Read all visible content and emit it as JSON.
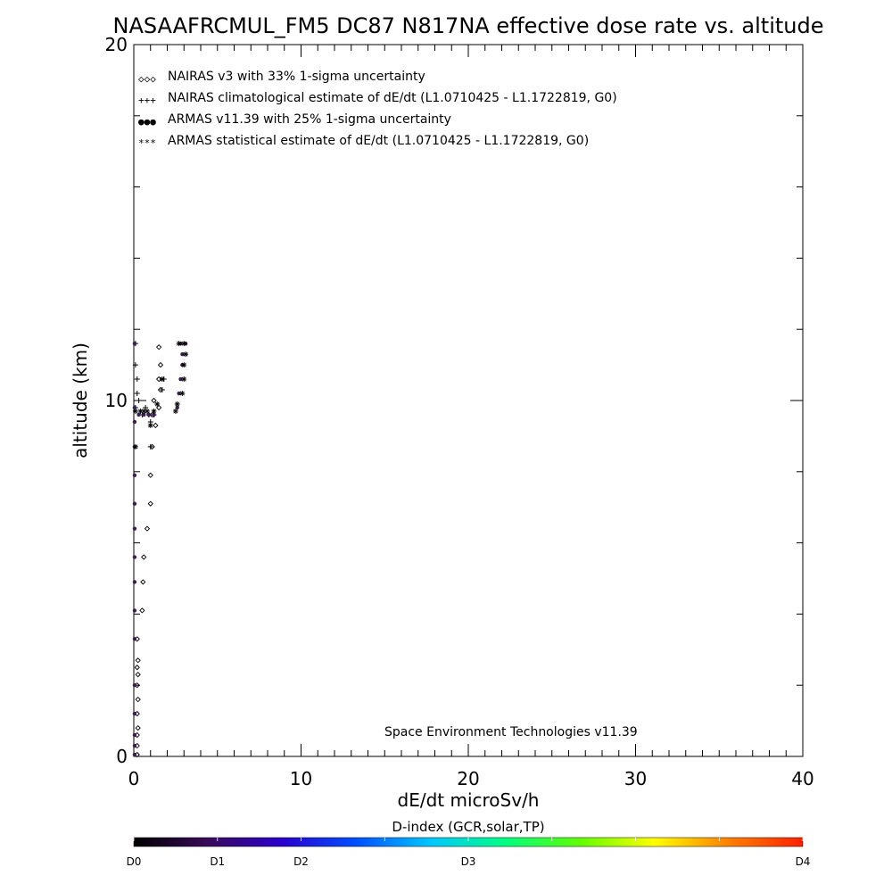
{
  "chart_data": {
    "type": "scatter",
    "title": "NASAAFRCMUL_FM5 DC87 N817NA effective dose rate vs. altitude",
    "xlabel": "dE/dt microSv/h",
    "ylabel": "altitude (km)",
    "xlim": [
      0,
      40
    ],
    "ylim": [
      0,
      20
    ],
    "x_ticks": [
      "0",
      "10",
      "20",
      "30",
      "40"
    ],
    "y_ticks": [
      "0",
      "10",
      "20"
    ],
    "legend_position": "top-left",
    "legend": [
      {
        "symbol": "◇◇◇",
        "label": "NAIRAS v3 with 33% 1-sigma uncertainty",
        "color": "#000000"
      },
      {
        "symbol": "+++",
        "label": "NAIRAS climatological estimate of dE/dt (L1.0710425 - L1.1722819, G0)",
        "color": "#000000"
      },
      {
        "symbol": "●●●",
        "label": "ARMAS v11.39 with 25% 1-sigma uncertainty",
        "color": "#1f3fcf"
      },
      {
        "symbol": "***",
        "label": "ARMAS statistical estimate of dE/dt (L1.0710425 - L1.1722819, G0)",
        "color": "#000000"
      }
    ],
    "series": [
      {
        "name": "NAIRAS v3 with 33% 1-sigma uncertainty",
        "marker": "diamond",
        "points": [
          [
            0.2,
            0.05
          ],
          [
            0.2,
            0.3
          ],
          [
            0.2,
            0.6
          ],
          [
            0.25,
            0.8
          ],
          [
            0.2,
            1.2
          ],
          [
            0.25,
            1.6
          ],
          [
            0.2,
            2.0
          ],
          [
            0.25,
            2.3
          ],
          [
            0.2,
            2.5
          ],
          [
            0.25,
            2.7
          ],
          [
            0.2,
            3.3
          ],
          [
            0.5,
            4.1
          ],
          [
            0.55,
            4.9
          ],
          [
            0.6,
            5.6
          ],
          [
            0.8,
            6.4
          ],
          [
            1.0,
            7.1
          ],
          [
            1.0,
            7.9
          ],
          [
            1.1,
            8.7
          ],
          [
            1.3,
            9.3
          ],
          [
            1.1,
            9.6
          ],
          [
            1.5,
            9.8
          ],
          [
            1.2,
            10.0
          ],
          [
            1.6,
            10.3
          ],
          [
            1.5,
            10.6
          ],
          [
            1.6,
            11.0
          ],
          [
            1.5,
            11.5
          ]
        ]
      },
      {
        "name": "NAIRAS climatological estimate of dE/dt (L1.0710425 - L1.1722819, G0)",
        "marker": "plus",
        "points": [
          [
            0.1,
            9.8
          ],
          [
            0.2,
            10.2
          ],
          [
            0.2,
            10.6
          ],
          [
            0.3,
            10.0
          ],
          [
            0.1,
            11.0
          ],
          [
            0.1,
            11.6
          ],
          [
            0.5,
            9.6
          ],
          [
            0.7,
            9.8
          ],
          [
            0.9,
            9.6
          ],
          [
            1.0,
            8.7
          ],
          [
            1.0,
            9.4
          ],
          [
            1.2,
            9.6
          ],
          [
            1.7,
            10.3
          ],
          [
            1.8,
            10.6
          ]
        ]
      },
      {
        "name": "ARMAS v11.39 with 25% 1-sigma uncertainty",
        "marker": "circle",
        "color": "#3a1f4f",
        "points": [
          [
            0.05,
            0.05
          ],
          [
            0.05,
            0.3
          ],
          [
            0.05,
            0.6
          ],
          [
            0.05,
            1.2
          ],
          [
            0.05,
            2.0
          ],
          [
            0.05,
            3.3
          ],
          [
            0.05,
            4.1
          ],
          [
            0.05,
            4.9
          ],
          [
            0.05,
            5.6
          ],
          [
            0.05,
            6.4
          ],
          [
            0.05,
            7.1
          ],
          [
            0.05,
            7.9
          ],
          [
            0.05,
            8.7
          ],
          [
            0.05,
            9.4
          ],
          [
            0.05,
            9.8
          ],
          [
            0.05,
            11.6
          ],
          [
            0.3,
            9.6
          ],
          [
            0.6,
            9.6
          ],
          [
            0.9,
            9.6
          ],
          [
            1.2,
            9.6
          ],
          [
            2.6,
            9.8
          ],
          [
            2.7,
            10.2
          ],
          [
            2.8,
            10.6
          ],
          [
            2.9,
            11.0
          ],
          [
            2.9,
            11.3
          ],
          [
            2.8,
            11.6
          ],
          [
            3.1,
            11.6
          ]
        ]
      },
      {
        "name": "ARMAS statistical estimate of dE/dt (L1.0710425 - L1.1722819, G0)",
        "marker": "asterisk",
        "points": [
          [
            0.1,
            9.7
          ],
          [
            0.1,
            8.7
          ],
          [
            0.4,
            9.7
          ],
          [
            0.6,
            9.7
          ],
          [
            0.8,
            9.7
          ],
          [
            1.0,
            9.3
          ],
          [
            1.2,
            9.7
          ],
          [
            1.4,
            9.9
          ],
          [
            1.7,
            10.6
          ],
          [
            2.5,
            9.7
          ],
          [
            2.6,
            9.9
          ],
          [
            2.9,
            10.2
          ],
          [
            3.0,
            10.6
          ],
          [
            3.0,
            11.0
          ],
          [
            3.1,
            11.3
          ],
          [
            2.7,
            11.6
          ],
          [
            3.0,
            11.6
          ]
        ]
      }
    ]
  },
  "credit": "Space Environment Technologies v11.39",
  "colorbar": {
    "title": "D-index (GCR,solar,TP)",
    "labels": [
      {
        "text": "D0",
        "frac": 0.0
      },
      {
        "text": "D1",
        "frac": 0.125
      },
      {
        "text": "D2",
        "frac": 0.25
      },
      {
        "text": "D3",
        "frac": 0.5
      },
      {
        "text": "D4",
        "frac": 1.0
      }
    ],
    "colors": [
      "#000000",
      "#3a0a5a",
      "#2a00d0",
      "#0050ff",
      "#00c8ff",
      "#00ff80",
      "#60ff00",
      "#ffff00",
      "#ff8000",
      "#ff2000"
    ]
  }
}
